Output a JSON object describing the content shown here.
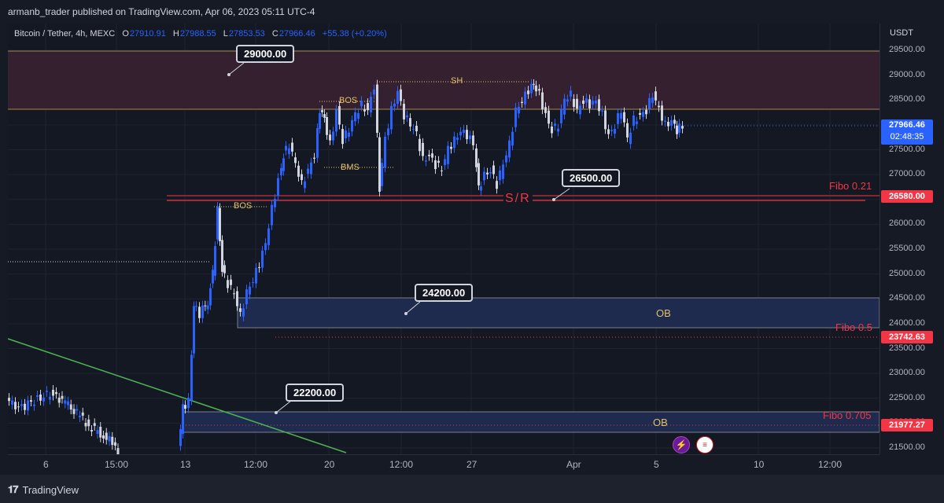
{
  "header": {
    "publisher": "armanb_trader published on TradingView.com, Apr 06, 2023 05:11 UTC-4"
  },
  "symbol": {
    "name": "Bitcoin / Tether, 4h, MEXC",
    "open_label": "O",
    "open": "27910.91",
    "high_label": "H",
    "high": "27988.55",
    "low_label": "L",
    "low": "27853.53",
    "close_label": "C",
    "close": "27966.46",
    "change": "+55.38 (+0.20%)"
  },
  "price_axis": {
    "currency": "USDT",
    "ticks": [
      "29500.00",
      "29000.00",
      "28500.00",
      "28000.00",
      "27500.00",
      "27000.00",
      "26500.00",
      "26000.00",
      "25500.00",
      "25000.00",
      "24500.00",
      "24000.00",
      "23500.00",
      "23000.00",
      "22500.00",
      "22000.00",
      "21500.00"
    ],
    "tick_values": [
      29500,
      29000,
      28500,
      28000,
      27500,
      27000,
      26500,
      26000,
      25500,
      25000,
      24500,
      24000,
      23500,
      23000,
      22500,
      22000,
      21500
    ],
    "current_price": "27966.46",
    "countdown": "02:48:35",
    "tag_fibo021": "26580.00",
    "tag_fibo05": "23742.63",
    "tag_fibo0705": "21977.27"
  },
  "time_axis": {
    "labels": [
      "6",
      "15:00",
      "13",
      "12:00",
      "20",
      "12:00",
      "27",
      "Apr",
      "5",
      "10",
      "12:00"
    ]
  },
  "annotations": {
    "callout_29000": "29000.00",
    "callout_26500": "26500.00",
    "callout_24200": "24200.00",
    "callout_22200": "22200.00",
    "bos_upper": "BOS",
    "bos_lower": "BOS",
    "bms": "BMS",
    "sh": "SH",
    "sr": "S/R",
    "ob_upper": "OB",
    "ob_lower": "OB",
    "fibo_021": "Fibo 0.21",
    "fibo_05": "Fibo 0.5",
    "fibo_0705": "Fibo 0.705"
  },
  "footer": {
    "brand": "TradingView"
  },
  "colors": {
    "up": "#2962ff",
    "down": "#d1d4dc",
    "fibo": "#f23645",
    "ob_zone": "#1e2b4f",
    "supply_zone": "#3a2230",
    "trendline": "#4caf50",
    "annotation": "#e0c068"
  },
  "chart_data": {
    "type": "candlestick",
    "title": "Bitcoin / Tether, 4h, MEXC",
    "ylabel": "USDT",
    "ylim": [
      21300,
      29950
    ],
    "x_tick_labels": [
      "6",
      "15:00",
      "13",
      "12:00",
      "20",
      "12:00",
      "27",
      "Apr",
      "5",
      "10",
      "12:00"
    ],
    "levels": {
      "supply_zone": [
        28300,
        29450
      ],
      "sr_line": 26520,
      "fibo_0.21": 26580.0,
      "ob_upper": [
        23900,
        24500
      ],
      "fibo_0.5": 23742.63,
      "ob_lower": [
        21850,
        22250
      ],
      "fibo_0.705": 21977.27
    },
    "last_price": 27966.46
  }
}
